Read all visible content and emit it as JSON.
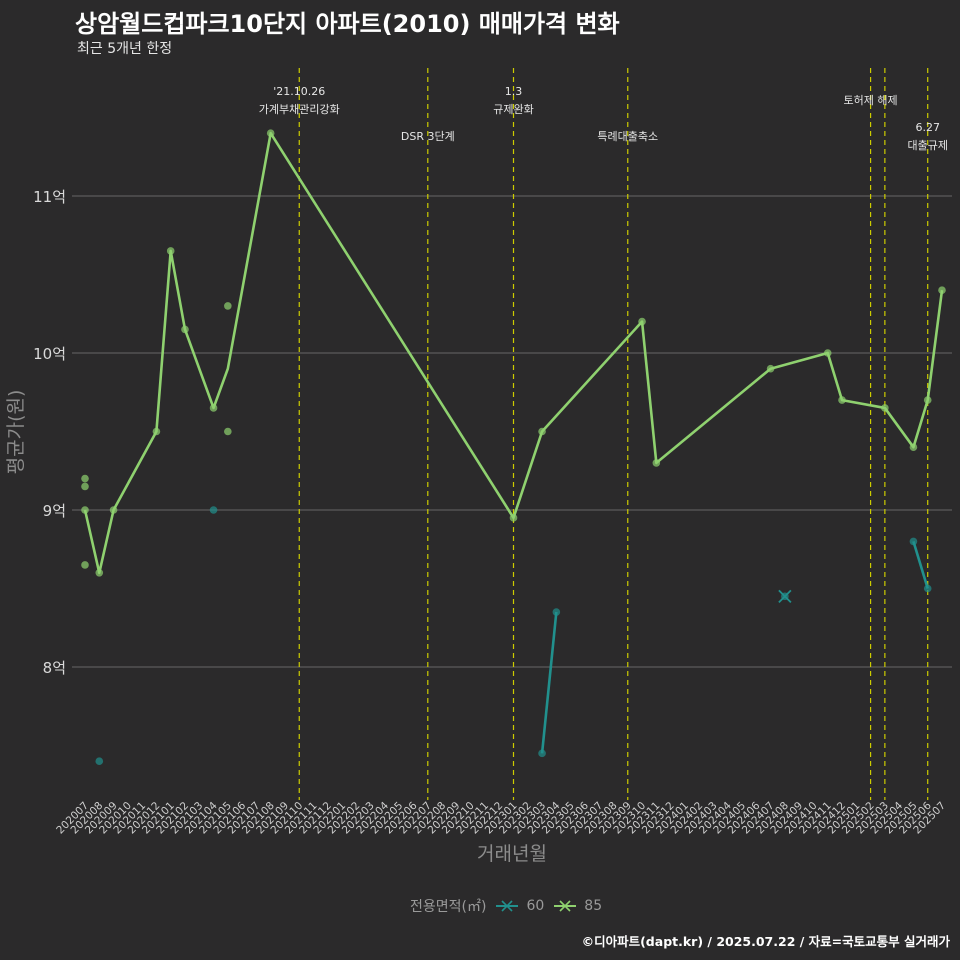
{
  "chart_data": {
    "type": "line",
    "title": "상암월드컵파크10단지 아파트(2010) 매매가격 변화",
    "subtitle": "최근 5개년 한정",
    "xlabel": "거래년월",
    "ylabel": "평균가(원)",
    "caption": "©디아파트(dapt.kr) / 2025.07.22 / 자료=국토교통부 실거래가",
    "legend_title": "전용면적(㎡)",
    "legend_position": "bottom",
    "grid": "horizontal",
    "x_categories": [
      "202007",
      "202008",
      "202009",
      "202010",
      "202011",
      "202012",
      "202101",
      "202102",
      "202103",
      "202104",
      "202105",
      "202106",
      "202107",
      "202108",
      "202109",
      "202110",
      "202111",
      "202112",
      "202201",
      "202202",
      "202203",
      "202204",
      "202205",
      "202206",
      "202207",
      "202208",
      "202209",
      "202210",
      "202211",
      "202212",
      "202301",
      "202302",
      "202303",
      "202304",
      "202305",
      "202306",
      "202307",
      "202308",
      "202309",
      "202310",
      "202311",
      "202312",
      "202401",
      "202402",
      "202403",
      "202404",
      "202405",
      "202406",
      "202407",
      "202408",
      "202409",
      "202410",
      "202411",
      "202412",
      "202501",
      "202502",
      "202503",
      "202504",
      "202505",
      "202506",
      "202507"
    ],
    "y_ticks": [
      {
        "value": 8,
        "label": "8억"
      },
      {
        "value": 9,
        "label": "9억"
      },
      {
        "value": 10,
        "label": "10억"
      },
      {
        "value": 11,
        "label": "11억"
      }
    ],
    "y_unit": "억",
    "ylim": [
      7.2,
      11.6
    ],
    "colors": {
      "60": "#21908d",
      "85": "#8fd16f",
      "event": "#cccc00"
    },
    "series": [
      {
        "name": "60",
        "line": [
          [
            "202303",
            7.45
          ],
          [
            "202304",
            8.35
          ]
        ],
        "line2": [
          [
            "202505",
            8.8
          ],
          [
            "202506",
            8.5
          ]
        ],
        "points": [
          [
            "202008",
            7.4
          ],
          [
            "202104",
            9.0
          ],
          [
            "202303",
            7.45
          ],
          [
            "202304",
            8.35
          ],
          [
            "202408",
            8.45
          ],
          [
            "202505",
            8.8
          ],
          [
            "202506",
            8.5
          ]
        ],
        "x_marker": [
          [
            "202408",
            8.45
          ]
        ]
      },
      {
        "name": "85",
        "line": [
          [
            "202007",
            9.0
          ],
          [
            "202008",
            8.6
          ],
          [
            "202009",
            9.0
          ],
          [
            "202012",
            9.5
          ],
          [
            "202101",
            10.65
          ],
          [
            "202102",
            10.15
          ],
          [
            "202104",
            9.65
          ],
          [
            "202105",
            9.9
          ],
          [
            "202108",
            11.4
          ],
          [
            "202301",
            8.95
          ],
          [
            "202303",
            9.5
          ],
          [
            "202310",
            10.2
          ],
          [
            "202311",
            9.3
          ],
          [
            "202407",
            9.9
          ],
          [
            "202411",
            10.0
          ],
          [
            "202412",
            9.7
          ],
          [
            "202503",
            9.65
          ],
          [
            "202505",
            9.4
          ],
          [
            "202506",
            9.7
          ],
          [
            "202507",
            10.4
          ]
        ],
        "points": [
          [
            "202007",
            9.0
          ],
          [
            "202007",
            9.2
          ],
          [
            "202007",
            9.15
          ],
          [
            "202007",
            8.65
          ],
          [
            "202008",
            8.6
          ],
          [
            "202009",
            9.0
          ],
          [
            "202012",
            9.5
          ],
          [
            "202101",
            10.65
          ],
          [
            "202102",
            10.15
          ],
          [
            "202104",
            9.65
          ],
          [
            "202105",
            10.3
          ],
          [
            "202105",
            9.5
          ],
          [
            "202108",
            11.4
          ],
          [
            "202301",
            8.95
          ],
          [
            "202303",
            9.5
          ],
          [
            "202310",
            10.2
          ],
          [
            "202311",
            9.3
          ],
          [
            "202407",
            9.9
          ],
          [
            "202411",
            10.0
          ],
          [
            "202412",
            9.7
          ],
          [
            "202503",
            9.65
          ],
          [
            "202505",
            9.4
          ],
          [
            "202506",
            9.7
          ],
          [
            "202507",
            10.4
          ]
        ]
      }
    ],
    "events": [
      {
        "x": "202110",
        "label": "'21.10.26\n가계부채관리강화",
        "row": 1
      },
      {
        "x": "202207",
        "label": "DSR 3단계",
        "row": 2
      },
      {
        "x": "202301",
        "label": "1.3\n규제완화",
        "row": 1
      },
      {
        "x": "202309",
        "label": "특례대출축소",
        "row": 2
      },
      {
        "x": "202502",
        "label": "토허제 해제",
        "row": 1
      },
      {
        "x": "202503",
        "label": "",
        "row": 1
      },
      {
        "x": "202506",
        "label": "6.27\n대출규제",
        "row": 3
      }
    ]
  }
}
